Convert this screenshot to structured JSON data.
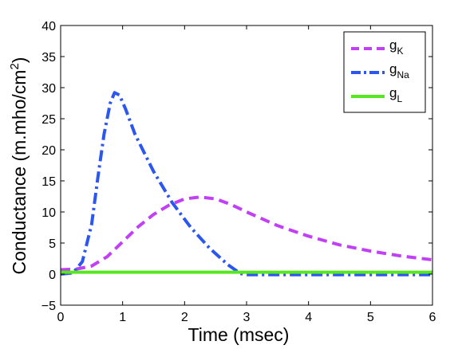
{
  "chart_data": {
    "type": "line",
    "title": "",
    "xlabel": "Time (msec)",
    "ylabel": {
      "base": "Conductance (m.mho/cm",
      "sup": "2",
      "close": ")"
    },
    "xlim": [
      0,
      6
    ],
    "ylim": [
      -5,
      40
    ],
    "xticks": [
      "0",
      "1",
      "2",
      "3",
      "4",
      "5",
      "6"
    ],
    "yticks": [
      "−5",
      "0",
      "5",
      "10",
      "15",
      "20",
      "25",
      "30",
      "35",
      "40"
    ],
    "legend_position": "top-right",
    "grid": false,
    "series": [
      {
        "name": "g_K",
        "label_main": "g",
        "label_sub": "K",
        "color": "#c13ff5",
        "style": "dashed",
        "x": [
          0,
          0.25,
          0.5,
          0.75,
          1.0,
          1.25,
          1.5,
          1.75,
          2.0,
          2.25,
          2.5,
          2.75,
          3.0,
          3.5,
          4.0,
          4.5,
          5.0,
          5.5,
          6.0
        ],
        "y": [
          0.7,
          0.8,
          1.3,
          2.8,
          5.2,
          7.6,
          9.6,
          11.1,
          12.1,
          12.4,
          12.1,
          11.2,
          10.0,
          7.8,
          6.1,
          4.7,
          3.7,
          2.9,
          2.3
        ]
      },
      {
        "name": "g_Na",
        "label_main": "g",
        "label_sub": "Na",
        "color": "#2b57f0",
        "style": "dashdot",
        "x": [
          0,
          0.2,
          0.35,
          0.5,
          0.6,
          0.7,
          0.8,
          0.87,
          0.95,
          1.05,
          1.2,
          1.5,
          1.8,
          2.1,
          2.4,
          2.7,
          2.9,
          3.0,
          3.5,
          4.0,
          5.0,
          6.0
        ],
        "y": [
          0,
          0.2,
          2.0,
          8.0,
          15.5,
          22.5,
          27.5,
          29.2,
          28.8,
          26.5,
          22.5,
          16.5,
          11.5,
          7.5,
          4.2,
          1.5,
          0.1,
          -0.1,
          -0.1,
          -0.1,
          -0.1,
          -0.1
        ]
      },
      {
        "name": "g_L",
        "label_main": "g",
        "label_sub": "L",
        "color": "#57e61f",
        "style": "solid",
        "x": [
          0,
          6
        ],
        "y": [
          0.3,
          0.3
        ]
      }
    ]
  }
}
